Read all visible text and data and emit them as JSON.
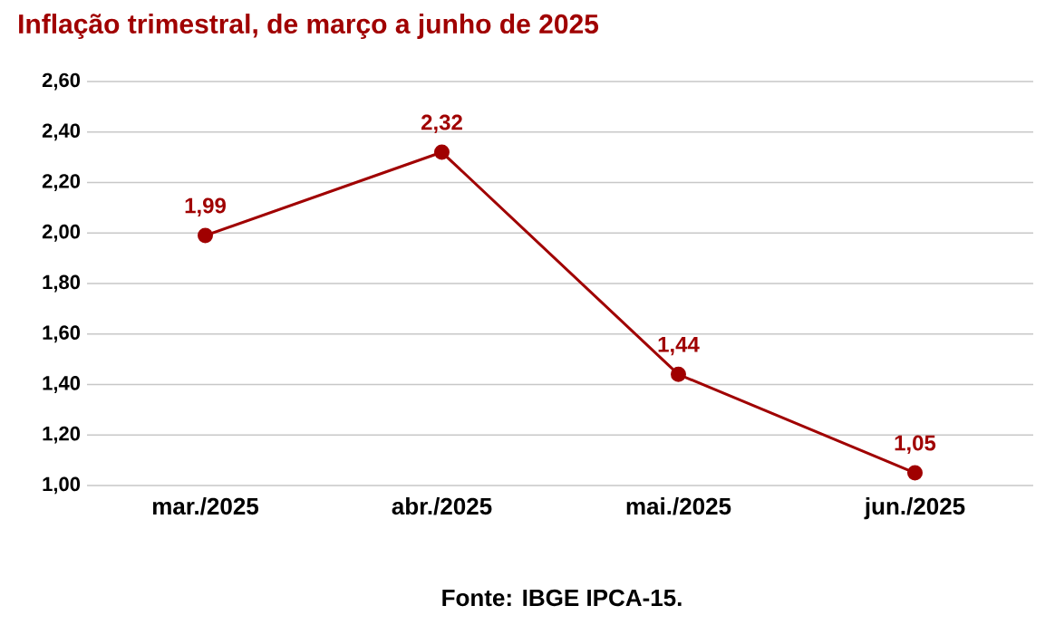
{
  "chart_data": {
    "type": "line",
    "title": "Inflação trimestral, de março a junho de 2025",
    "categories": [
      "mar./2025",
      "abr./2025",
      "mai./2025",
      "jun./2025"
    ],
    "series": [
      {
        "color": "#a00000",
        "values": [
          1.99,
          2.32,
          1.44,
          1.05
        ]
      }
    ],
    "value_labels": [
      "1,99",
      "2,32",
      "1,44",
      "1,05"
    ],
    "ylim": [
      1.0,
      2.6
    ],
    "yticks": [
      {
        "value": 1.0,
        "label": "1,00"
      },
      {
        "value": 1.2,
        "label": "1,20"
      },
      {
        "value": 1.4,
        "label": "1,40"
      },
      {
        "value": 1.6,
        "label": "1,60"
      },
      {
        "value": 1.8,
        "label": "1,80"
      },
      {
        "value": 2.0,
        "label": "2,00"
      },
      {
        "value": 2.2,
        "label": "2,20"
      },
      {
        "value": 2.4,
        "label": "2,40"
      },
      {
        "value": 2.6,
        "label": "2,60"
      }
    ],
    "grid": "y",
    "marker": "circle",
    "line_style": "solid",
    "annotations": [
      "Fonte: IBGE IPCA-15."
    ]
  }
}
